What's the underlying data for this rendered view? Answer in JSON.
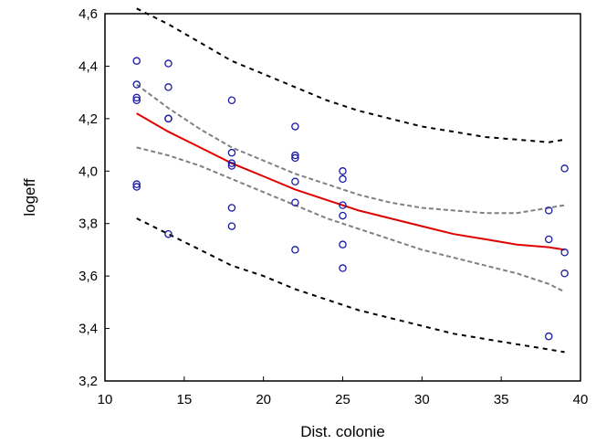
{
  "chart_data": {
    "type": "scatter",
    "title": "",
    "xlabel": "Dist. colonie",
    "ylabel": "logeff",
    "xlim": [
      10,
      40
    ],
    "ylim": [
      3.2,
      4.6
    ],
    "xticks": [
      10,
      15,
      20,
      25,
      30,
      35,
      40
    ],
    "yticks": [
      3.2,
      3.4,
      3.6,
      3.8,
      4.0,
      4.2,
      4.4,
      4.6
    ],
    "xtick_labels": [
      "10",
      "15",
      "20",
      "25",
      "30",
      "35",
      "40"
    ],
    "ytick_labels": [
      "3,2",
      "3,4",
      "3,6",
      "3,8",
      "4,0",
      "4,2",
      "4,4",
      "4,6"
    ],
    "grid": false,
    "legend": "none",
    "colors": {
      "points": "#1a1aa0",
      "fit": "#e00000",
      "confidence_band": "#808080",
      "prediction_band": "#000000"
    },
    "points": [
      {
        "x": 12,
        "y": 4.42
      },
      {
        "x": 12,
        "y": 4.33
      },
      {
        "x": 12,
        "y": 4.28
      },
      {
        "x": 12,
        "y": 4.27
      },
      {
        "x": 12,
        "y": 3.95
      },
      {
        "x": 12,
        "y": 3.94
      },
      {
        "x": 14,
        "y": 4.41
      },
      {
        "x": 14,
        "y": 4.32
      },
      {
        "x": 14,
        "y": 4.2
      },
      {
        "x": 14,
        "y": 4.2
      },
      {
        "x": 14,
        "y": 3.76
      },
      {
        "x": 18,
        "y": 4.27
      },
      {
        "x": 18,
        "y": 4.07
      },
      {
        "x": 18,
        "y": 4.03
      },
      {
        "x": 18,
        "y": 4.02
      },
      {
        "x": 18,
        "y": 3.86
      },
      {
        "x": 18,
        "y": 3.79
      },
      {
        "x": 22,
        "y": 4.17
      },
      {
        "x": 22,
        "y": 4.06
      },
      {
        "x": 22,
        "y": 4.05
      },
      {
        "x": 22,
        "y": 3.96
      },
      {
        "x": 22,
        "y": 3.88
      },
      {
        "x": 22,
        "y": 3.7
      },
      {
        "x": 25,
        "y": 4.0
      },
      {
        "x": 25,
        "y": 3.97
      },
      {
        "x": 25,
        "y": 3.87
      },
      {
        "x": 25,
        "y": 3.83
      },
      {
        "x": 25,
        "y": 3.72
      },
      {
        "x": 25,
        "y": 3.63
      },
      {
        "x": 38,
        "y": 3.85
      },
      {
        "x": 38,
        "y": 3.74
      },
      {
        "x": 38,
        "y": 3.37
      },
      {
        "x": 39,
        "y": 4.01
      },
      {
        "x": 39,
        "y": 3.69
      },
      {
        "x": 39,
        "y": 3.61
      }
    ],
    "series": [
      {
        "role": "fit",
        "style": "solid",
        "x": [
          12,
          14,
          16,
          18,
          20,
          22,
          24,
          26,
          28,
          30,
          32,
          34,
          36,
          38,
          39
        ],
        "y": [
          4.22,
          4.15,
          4.09,
          4.03,
          3.98,
          3.93,
          3.89,
          3.85,
          3.82,
          3.79,
          3.76,
          3.74,
          3.72,
          3.71,
          3.7
        ]
      },
      {
        "role": "confidence_upper",
        "style": "dashed",
        "x": [
          12,
          14,
          16,
          18,
          20,
          22,
          24,
          26,
          28,
          30,
          32,
          34,
          36,
          38,
          39
        ],
        "y": [
          4.33,
          4.24,
          4.16,
          4.09,
          4.04,
          3.99,
          3.95,
          3.91,
          3.88,
          3.86,
          3.85,
          3.84,
          3.84,
          3.86,
          3.87
        ]
      },
      {
        "role": "confidence_lower",
        "style": "dashed",
        "x": [
          12,
          14,
          16,
          18,
          20,
          22,
          24,
          26,
          28,
          30,
          32,
          34,
          36,
          38,
          39
        ],
        "y": [
          4.09,
          4.06,
          4.02,
          3.97,
          3.92,
          3.87,
          3.82,
          3.78,
          3.74,
          3.7,
          3.67,
          3.64,
          3.61,
          3.57,
          3.54
        ]
      },
      {
        "role": "prediction_upper",
        "style": "dotted",
        "x": [
          12,
          14,
          16,
          18,
          20,
          22,
          24,
          26,
          28,
          30,
          32,
          34,
          36,
          38,
          39
        ],
        "y": [
          4.62,
          4.56,
          4.49,
          4.42,
          4.37,
          4.32,
          4.27,
          4.23,
          4.2,
          4.17,
          4.15,
          4.13,
          4.12,
          4.11,
          4.12
        ]
      },
      {
        "role": "prediction_lower",
        "style": "dotted",
        "x": [
          12,
          14,
          16,
          18,
          20,
          22,
          24,
          26,
          28,
          30,
          32,
          34,
          36,
          38,
          39
        ],
        "y": [
          3.82,
          3.76,
          3.7,
          3.64,
          3.6,
          3.55,
          3.51,
          3.47,
          3.44,
          3.41,
          3.38,
          3.36,
          3.34,
          3.32,
          3.31
        ]
      }
    ]
  }
}
